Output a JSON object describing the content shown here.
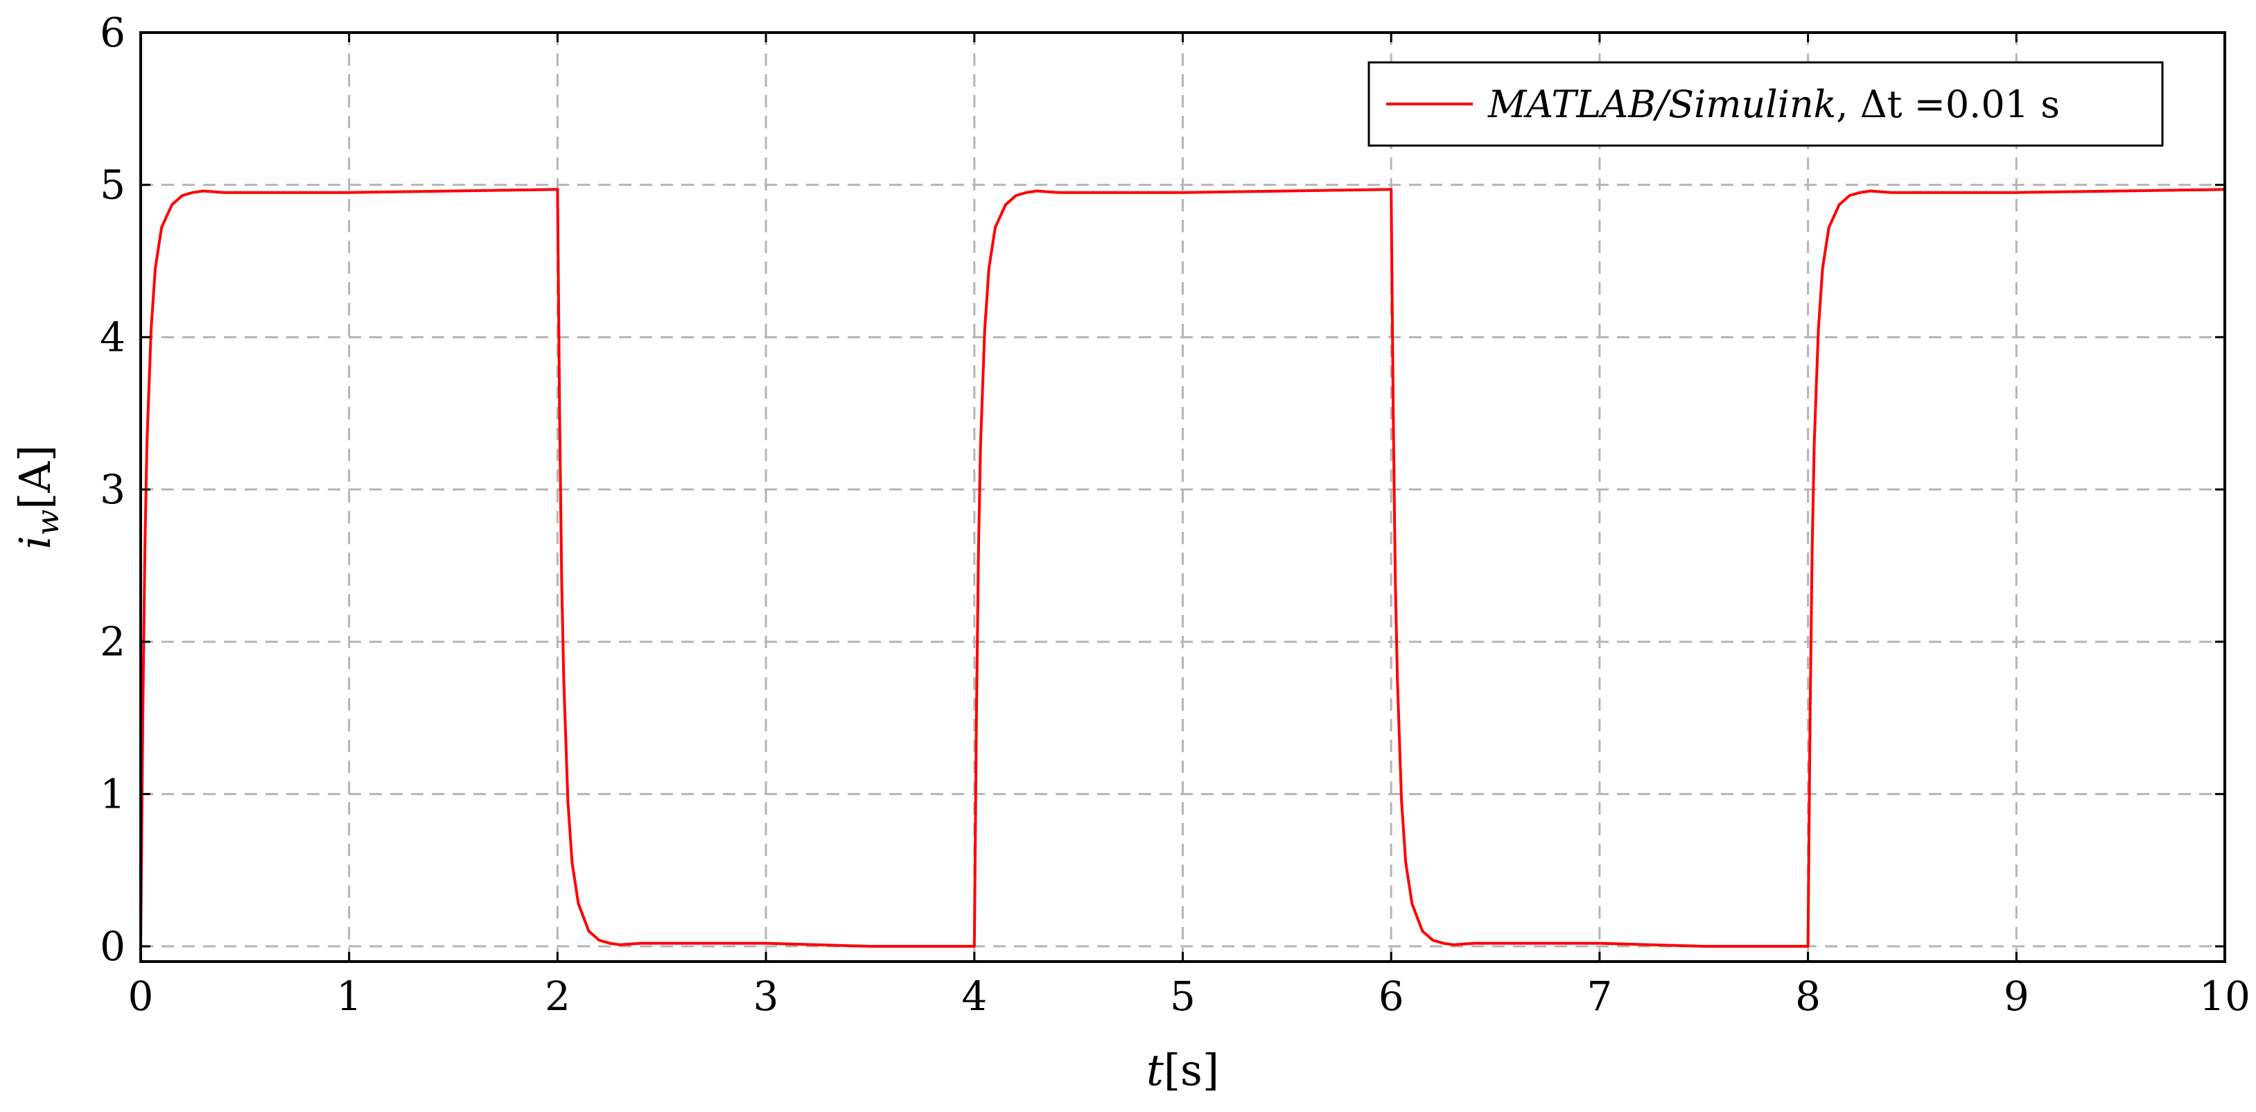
{
  "chart_data": {
    "type": "line",
    "xlabel": {
      "var": "t",
      "unit": "[s]"
    },
    "ylabel": {
      "var": "i",
      "sub": "w",
      "unit": "[A]"
    },
    "xlim": [
      0,
      10
    ],
    "ylim": [
      -0.1,
      6
    ],
    "xticks": [
      "0",
      "1",
      "2",
      "3",
      "4",
      "5",
      "6",
      "7",
      "8",
      "9",
      "10"
    ],
    "yticks": [
      "0",
      "1",
      "2",
      "3",
      "4",
      "5",
      "6"
    ],
    "grid": true,
    "grid_style": "dashed",
    "legend_position": "top-right",
    "series": [
      {
        "name": "MATLAB/Simulink, Δt =0.01 s",
        "legend_parts": {
          "italic": "MATLAB/Simulink",
          "rest": ", Δt =0.01 s"
        },
        "color": "#ff0000",
        "x": [
          0,
          0.01,
          0.02,
          0.03,
          0.05,
          0.07,
          0.1,
          0.15,
          0.2,
          0.25,
          0.3,
          0.4,
          0.6,
          1.0,
          1.5,
          1.99,
          2.0,
          2.01,
          2.02,
          2.03,
          2.05,
          2.07,
          2.1,
          2.15,
          2.2,
          2.25,
          2.3,
          2.4,
          2.6,
          3.0,
          3.5,
          3.99,
          4.0,
          4.01,
          4.02,
          4.03,
          4.05,
          4.07,
          4.1,
          4.15,
          4.2,
          4.25,
          4.3,
          4.4,
          4.6,
          5.0,
          5.5,
          5.99,
          6.0,
          6.01,
          6.02,
          6.03,
          6.05,
          6.07,
          6.1,
          6.15,
          6.2,
          6.25,
          6.3,
          6.4,
          6.6,
          7.0,
          7.5,
          7.99,
          8.0,
          8.01,
          8.02,
          8.03,
          8.05,
          8.07,
          8.1,
          8.15,
          8.2,
          8.25,
          8.3,
          8.4,
          8.6,
          9.0,
          9.5,
          10.0
        ],
        "y": [
          0,
          1.5,
          2.6,
          3.3,
          4.05,
          4.45,
          4.72,
          4.87,
          4.93,
          4.95,
          4.96,
          4.95,
          4.95,
          4.95,
          4.96,
          4.97,
          4.97,
          3.5,
          2.4,
          1.75,
          0.95,
          0.55,
          0.28,
          0.1,
          0.04,
          0.02,
          0.01,
          0.02,
          0.02,
          0.02,
          0.0,
          0.0,
          0.0,
          1.5,
          2.6,
          3.3,
          4.05,
          4.45,
          4.72,
          4.87,
          4.93,
          4.95,
          4.96,
          4.95,
          4.95,
          4.95,
          4.96,
          4.97,
          4.97,
          3.5,
          2.4,
          1.75,
          0.95,
          0.55,
          0.28,
          0.1,
          0.04,
          0.02,
          0.01,
          0.02,
          0.02,
          0.02,
          0.0,
          0.0,
          0.0,
          1.5,
          2.6,
          3.3,
          4.05,
          4.45,
          4.72,
          4.87,
          4.93,
          4.95,
          4.96,
          4.95,
          4.95,
          4.95,
          4.96,
          4.97
        ]
      }
    ]
  }
}
